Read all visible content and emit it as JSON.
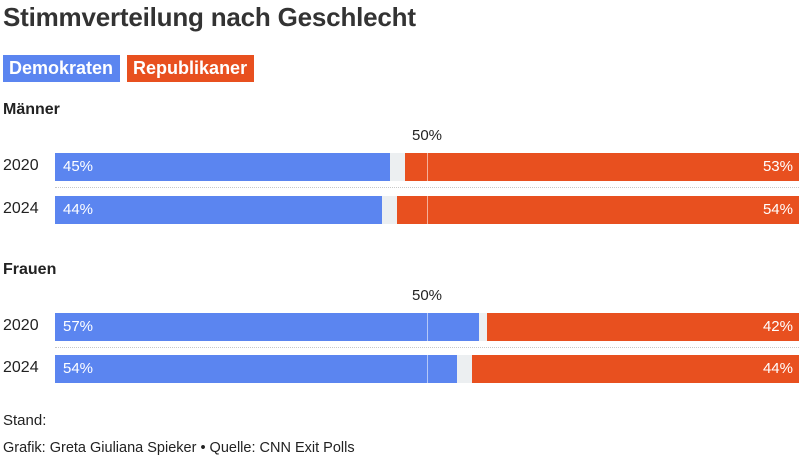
{
  "chart_data": {
    "type": "bar",
    "title": "Stimmverteilung nach Geschlecht",
    "legend": [
      {
        "name": "Demokraten",
        "color": "#5b85f0"
      },
      {
        "name": "Republikaner",
        "color": "#e8501f"
      }
    ],
    "midpoint_label": "50%",
    "groups": [
      {
        "name": "Männer",
        "rows": [
          {
            "year": "2020",
            "dem": 45,
            "rep": 53,
            "dem_label": "45%",
            "rep_label": "53%"
          },
          {
            "year": "2024",
            "dem": 44,
            "rep": 54,
            "dem_label": "44%",
            "rep_label": "54%"
          }
        ]
      },
      {
        "name": "Frauen",
        "rows": [
          {
            "year": "2020",
            "dem": 57,
            "rep": 42,
            "dem_label": "57%",
            "rep_label": "42%"
          },
          {
            "year": "2024",
            "dem": 54,
            "rep": 44,
            "dem_label": "54%",
            "rep_label": "44%"
          }
        ]
      }
    ],
    "xlim": [
      0,
      100
    ]
  },
  "footer": {
    "stand": "Stand:",
    "credit": "Grafik: Greta Giuliana Spieker • Quelle: CNN Exit Polls"
  }
}
